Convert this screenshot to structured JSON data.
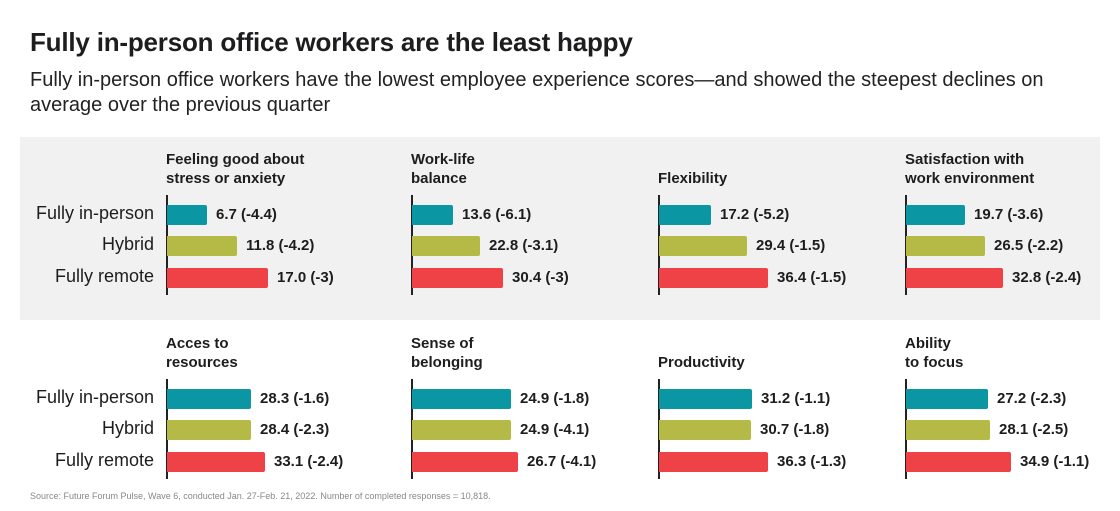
{
  "title": "Fully in-person office workers are the least happy",
  "subtitle": "Fully in-person office workers have the lowest employee experience scores—and showed the steepest declines on average over the previous quarter",
  "source": "Source: Future Forum Pulse, Wave 6, conducted Jan. 27-Feb. 21, 2022. Number of completed responses = 10,818.",
  "colors": {
    "fully_in_person": "#0a97a3",
    "hybrid": "#b5ba47",
    "fully_remote": "#ef4247",
    "band": "#f1f1f1"
  },
  "chart_data": {
    "type": "bar",
    "orientation": "horizontal",
    "title": "Fully in-person office workers are the least happy",
    "categories": [
      "Fully in-person",
      "Hybrid",
      "Fully remote"
    ],
    "value_label_format": "score (quarterly change)",
    "panels": [
      {
        "title_lines": [
          "Feeling good about",
          "stress or anxiety"
        ],
        "values": [
          6.7,
          11.8,
          17.0
        ],
        "changes": [
          "-4.4",
          "-4.2",
          "-3"
        ]
      },
      {
        "title_lines": [
          "Work-life",
          "balance"
        ],
        "values": [
          13.6,
          22.8,
          30.4
        ],
        "changes": [
          "-6.1",
          "-3.1",
          "-3"
        ]
      },
      {
        "title_lines": [
          "Flexibility"
        ],
        "values": [
          17.2,
          29.4,
          36.4
        ],
        "changes": [
          "-5.2",
          "-1.5",
          "-1.5"
        ]
      },
      {
        "title_lines": [
          "Satisfaction with",
          "work environment"
        ],
        "values": [
          19.7,
          26.5,
          32.8
        ],
        "changes": [
          "-3.6",
          "-2.2",
          "-2.4"
        ]
      },
      {
        "title_lines": [
          "Acces to",
          "resources"
        ],
        "values": [
          28.3,
          28.4,
          33.1
        ],
        "changes": [
          "-1.6",
          "-2.3",
          "-2.4"
        ]
      },
      {
        "title_lines": [
          "Sense of",
          "belonging"
        ],
        "values": [
          24.9,
          24.9,
          26.7
        ],
        "changes": [
          "-1.8",
          "-4.1",
          "-4.1"
        ]
      },
      {
        "title_lines": [
          "Productivity"
        ],
        "values": [
          31.2,
          30.7,
          36.3
        ],
        "changes": [
          "-1.1",
          "-1.8",
          "-1.3"
        ]
      },
      {
        "title_lines": [
          "Ability",
          "to focus"
        ],
        "values": [
          27.2,
          28.1,
          34.9
        ],
        "changes": [
          "-2.3",
          "-2.5",
          "-1.1"
        ]
      }
    ]
  }
}
